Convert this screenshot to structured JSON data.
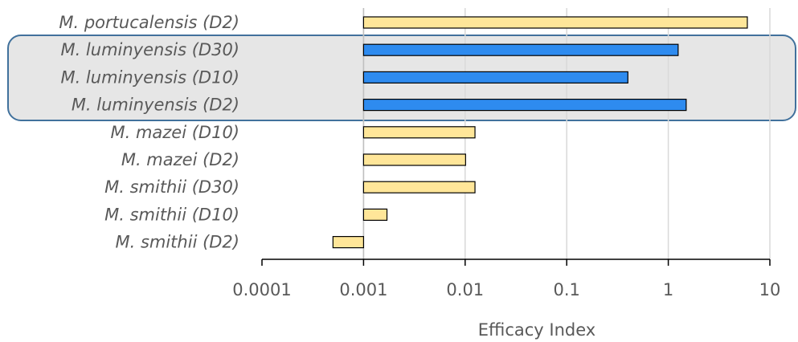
{
  "chart_data": {
    "type": "bar",
    "orientation": "horizontal",
    "x_scale": "log",
    "xlim": [
      0.0001,
      10
    ],
    "baseline": 0.001,
    "grid": true,
    "xlabel": "Efficacy Index",
    "x_ticks": [
      "0.0001",
      "0.001",
      "0.01",
      "0.1",
      "1",
      "10"
    ],
    "categories": [
      "M. portucalensis (D2)",
      "M. luminyensis (D30)",
      "M. luminyensis (D10)",
      "M. luminyensis (D2)",
      "M. mazei (D10)",
      "M. mazei (D2)",
      "M. smithii (D30)",
      "M. smithii (D10)",
      "M. smithii (D2)"
    ],
    "values": [
      6.0,
      1.25,
      0.4,
      1.5,
      0.0125,
      0.0101,
      0.0125,
      0.0017,
      0.0005
    ],
    "highlighted_categories": [
      "M. luminyensis (D30)",
      "M. luminyensis (D10)",
      "M. luminyensis (D2)"
    ],
    "colors": {
      "default_bar": "#FFE699",
      "highlight_bar": "#2E8BEF",
      "bar_outline": "#000000",
      "highlight_box_fill": "#E6E6E6",
      "highlight_box_border": "#41719C",
      "grid": "#D9D9D9",
      "axis": "#000000",
      "text": "#595959"
    }
  }
}
